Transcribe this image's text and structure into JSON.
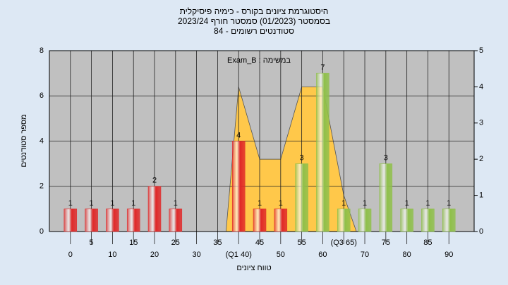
{
  "chart_data": {
    "type": "bar",
    "title": "היסטוגרמת ציונים בקורס - כימיה פיסיקלית",
    "subtitle": "בסמסטר  (01/2023)  סמסטר חורף 2023/24",
    "subtitle2": "סטודנטים רשומים - 84",
    "annotation": "Exam_B : במשימה",
    "ylabel": "מספר סטודנטים",
    "xlabel": "טווח ציונים",
    "x": [
      0,
      5,
      10,
      15,
      20,
      25,
      30,
      35,
      40,
      45,
      50,
      55,
      60,
      65,
      70,
      75,
      80,
      85,
      90
    ],
    "values": [
      1,
      1,
      1,
      1,
      2,
      1,
      0,
      0,
      4,
      1,
      1,
      3,
      7,
      1,
      1,
      3,
      1,
      1,
      1
    ],
    "colors": [
      "#e02828",
      "#e02828",
      "#e02828",
      "#e02828",
      "#e02828",
      "#e02828",
      "#e02828",
      "#e02828",
      "#e02828",
      "#e02828",
      "#e02828",
      "#8fc04a",
      "#8fc04a",
      "#8fc04a",
      "#8fc04a",
      "#8fc04a",
      "#8fc04a",
      "#8fc04a",
      "#8fc04a"
    ],
    "areas": [
      {
        "color": "#ffc84a",
        "axis": "y2",
        "x": [
          37,
          40,
          45,
          50,
          55,
          60,
          65,
          68
        ],
        "values": [
          0,
          4,
          2,
          2,
          4,
          4,
          1,
          0
        ]
      }
    ],
    "xlim": [
      -5,
      96
    ],
    "xticks": [
      0,
      5,
      10,
      15,
      20,
      25,
      30,
      35,
      {
        "value": 40,
        "label": "(Q1 40)"
      },
      45,
      50,
      55,
      60,
      {
        "value": 65,
        "label": "(Q3 65)"
      },
      70,
      75,
      80,
      85,
      90
    ],
    "ylim": [
      0,
      8
    ],
    "yticks": [
      0,
      2,
      4,
      6,
      8
    ],
    "y2lim": [
      0,
      5
    ],
    "y2ticks": [
      0,
      1,
      2,
      3,
      4,
      5
    ],
    "grid": true
  }
}
